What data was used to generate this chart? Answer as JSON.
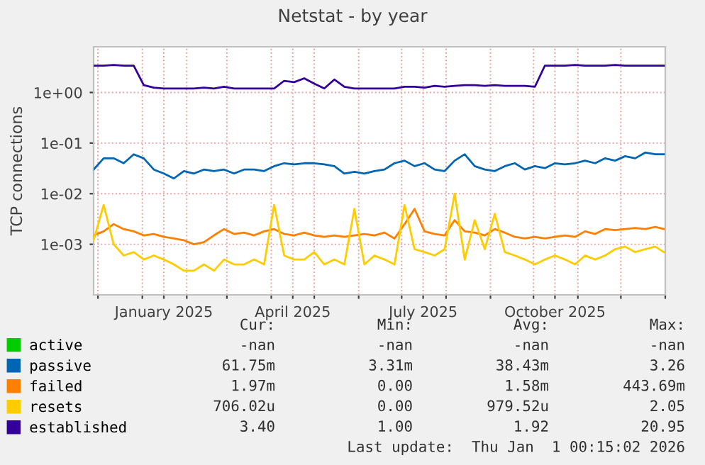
{
  "chart_data": {
    "type": "line",
    "title": "Netstat - by year",
    "ylabel": "TCP connections",
    "log": "y",
    "grid": true,
    "legend": "bottom",
    "line_style": "solid",
    "marker": "none",
    "xlim": [
      "2024-11-28",
      "2026-01-01"
    ],
    "xticks": [
      {
        "value": "2024-12-01",
        "label": null
      },
      {
        "value": "2025-01-01",
        "label": null
      },
      {
        "value": "2025-01-16",
        "label": "January 2025"
      },
      {
        "value": "2025-02-01",
        "label": null
      },
      {
        "value": "2025-03-01",
        "label": null
      },
      {
        "value": "2025-04-01",
        "label": null
      },
      {
        "value": "2025-04-16",
        "label": "April 2025"
      },
      {
        "value": "2025-05-01",
        "label": null
      },
      {
        "value": "2025-06-01",
        "label": null
      },
      {
        "value": "2025-07-01",
        "label": null
      },
      {
        "value": "2025-07-16",
        "label": "July 2025"
      },
      {
        "value": "2025-08-01",
        "label": null
      },
      {
        "value": "2025-09-01",
        "label": null
      },
      {
        "value": "2025-10-01",
        "label": null
      },
      {
        "value": "2025-10-16",
        "label": "October 2025"
      },
      {
        "value": "2025-11-01",
        "label": null
      },
      {
        "value": "2025-12-01",
        "label": null
      },
      {
        "value": "2026-01-01",
        "label": null
      }
    ],
    "ylim": [
      0.0001,
      8
    ],
    "yticks": [
      {
        "value": 0.001,
        "label": "1e-03"
      },
      {
        "value": 0.01,
        "label": "1e-02"
      },
      {
        "value": 0.1,
        "label": "1e-01"
      },
      {
        "value": 1,
        "label": "1e+00"
      }
    ],
    "x": [
      "2024-11-28",
      "2024-12-05",
      "2024-12-12",
      "2024-12-19",
      "2024-12-26",
      "2025-01-02",
      "2025-01-09",
      "2025-01-16",
      "2025-01-23",
      "2025-01-30",
      "2025-02-06",
      "2025-02-13",
      "2025-02-20",
      "2025-02-27",
      "2025-03-06",
      "2025-03-13",
      "2025-03-20",
      "2025-03-27",
      "2025-04-03",
      "2025-04-10",
      "2025-04-17",
      "2025-04-24",
      "2025-05-01",
      "2025-05-08",
      "2025-05-15",
      "2025-05-22",
      "2025-05-29",
      "2025-06-05",
      "2025-06-12",
      "2025-06-19",
      "2025-06-26",
      "2025-07-03",
      "2025-07-10",
      "2025-07-17",
      "2025-07-24",
      "2025-07-31",
      "2025-08-07",
      "2025-08-14",
      "2025-08-21",
      "2025-08-28",
      "2025-09-04",
      "2025-09-11",
      "2025-09-18",
      "2025-09-25",
      "2025-10-02",
      "2025-10-09",
      "2025-10-16",
      "2025-10-23",
      "2025-10-30",
      "2025-11-06",
      "2025-11-13",
      "2025-11-20",
      "2025-11-27",
      "2025-12-04",
      "2025-12-11",
      "2025-12-18",
      "2025-12-25",
      "2025-12-31"
    ],
    "series": [
      {
        "name": "active",
        "color": "#00cc00",
        "values": [
          null,
          null,
          null,
          null,
          null,
          null,
          null,
          null,
          null,
          null,
          null,
          null,
          null,
          null,
          null,
          null,
          null,
          null,
          null,
          null,
          null,
          null,
          null,
          null,
          null,
          null,
          null,
          null,
          null,
          null,
          null,
          null,
          null,
          null,
          null,
          null,
          null,
          null,
          null,
          null,
          null,
          null,
          null,
          null,
          null,
          null,
          null,
          null,
          null,
          null,
          null,
          null,
          null,
          null,
          null,
          null,
          null,
          null
        ]
      },
      {
        "name": "passive",
        "color": "#0066b3",
        "values": [
          0.03,
          0.05,
          0.05,
          0.04,
          0.06,
          0.05,
          0.03,
          0.025,
          0.02,
          0.028,
          0.025,
          0.03,
          0.028,
          0.03,
          0.025,
          0.03,
          0.03,
          0.028,
          0.035,
          0.04,
          0.038,
          0.04,
          0.04,
          0.038,
          0.035,
          0.025,
          0.027,
          0.025,
          0.028,
          0.03,
          0.04,
          0.045,
          0.035,
          0.04,
          0.03,
          0.028,
          0.045,
          0.06,
          0.035,
          0.03,
          0.028,
          0.035,
          0.04,
          0.03,
          0.035,
          0.032,
          0.04,
          0.038,
          0.04,
          0.045,
          0.04,
          0.05,
          0.045,
          0.055,
          0.05,
          0.065,
          0.06,
          0.06
        ]
      },
      {
        "name": "failed",
        "color": "#ff8000",
        "values": [
          0.0015,
          0.0018,
          0.0025,
          0.002,
          0.0018,
          0.0015,
          0.0016,
          0.0014,
          0.0013,
          0.0012,
          0.001,
          0.0011,
          0.0015,
          0.002,
          0.0016,
          0.0017,
          0.0015,
          0.0018,
          0.002,
          0.0016,
          0.0015,
          0.0017,
          0.0015,
          0.0014,
          0.0015,
          0.0014,
          0.0015,
          0.0016,
          0.0015,
          0.0017,
          0.0013,
          0.0025,
          0.005,
          0.0018,
          0.0016,
          0.0015,
          0.003,
          0.0018,
          0.0017,
          0.0015,
          0.002,
          0.0017,
          0.0014,
          0.0013,
          0.0014,
          0.0013,
          0.0014,
          0.0015,
          0.0014,
          0.0018,
          0.0016,
          0.002,
          0.0019,
          0.002,
          0.0021,
          0.002,
          0.0022,
          0.002
        ]
      },
      {
        "name": "resets",
        "color": "#ffcc00",
        "values": [
          0.0012,
          0.006,
          0.001,
          0.0006,
          0.0007,
          0.0005,
          0.0006,
          0.0005,
          0.0004,
          0.0003,
          0.0003,
          0.0004,
          0.0003,
          0.0005,
          0.0004,
          0.0004,
          0.0005,
          0.0004,
          0.006,
          0.0006,
          0.0005,
          0.0005,
          0.0007,
          0.0004,
          0.0005,
          0.0004,
          0.005,
          0.0004,
          0.0006,
          0.0005,
          0.0004,
          0.006,
          0.0008,
          0.0007,
          0.0006,
          0.0008,
          0.01,
          0.0005,
          0.003,
          0.0008,
          0.004,
          0.0007,
          0.0006,
          0.0005,
          0.0004,
          0.0005,
          0.0006,
          0.0005,
          0.0004,
          0.0006,
          0.0005,
          0.0006,
          0.0008,
          0.0009,
          0.0007,
          0.0008,
          0.0009,
          0.0007
        ]
      },
      {
        "name": "established",
        "color": "#330099",
        "values": [
          3.4,
          3.4,
          3.5,
          3.4,
          3.4,
          1.4,
          1.25,
          1.2,
          1.2,
          1.2,
          1.2,
          1.25,
          1.2,
          1.3,
          1.2,
          1.2,
          1.2,
          1.2,
          1.2,
          1.7,
          1.6,
          1.9,
          1.5,
          1.2,
          1.8,
          1.3,
          1.2,
          1.2,
          1.2,
          1.2,
          1.2,
          1.3,
          1.3,
          1.25,
          1.35,
          1.3,
          1.35,
          1.4,
          1.4,
          1.35,
          1.4,
          1.35,
          1.35,
          1.35,
          1.3,
          3.4,
          3.4,
          3.4,
          3.5,
          3.4,
          3.4,
          3.4,
          3.5,
          3.4,
          3.4,
          3.4,
          3.4,
          3.4
        ]
      }
    ],
    "annotations": [
      "Cur:",
      "Min:",
      "Avg:",
      "Max:",
      "-nan",
      "-nan",
      "-nan",
      "-nan",
      "61.75m",
      "3.31m",
      "38.43m",
      "3.26",
      "1.97m",
      "0.00",
      "1.58m",
      "443.69m",
      "706.02u",
      "0.00",
      "979.52u",
      "2.05",
      "3.40",
      "1.00",
      "1.92",
      "20.95",
      "Last update:  Thu Jan  1 00:15:02 2026"
    ]
  }
}
